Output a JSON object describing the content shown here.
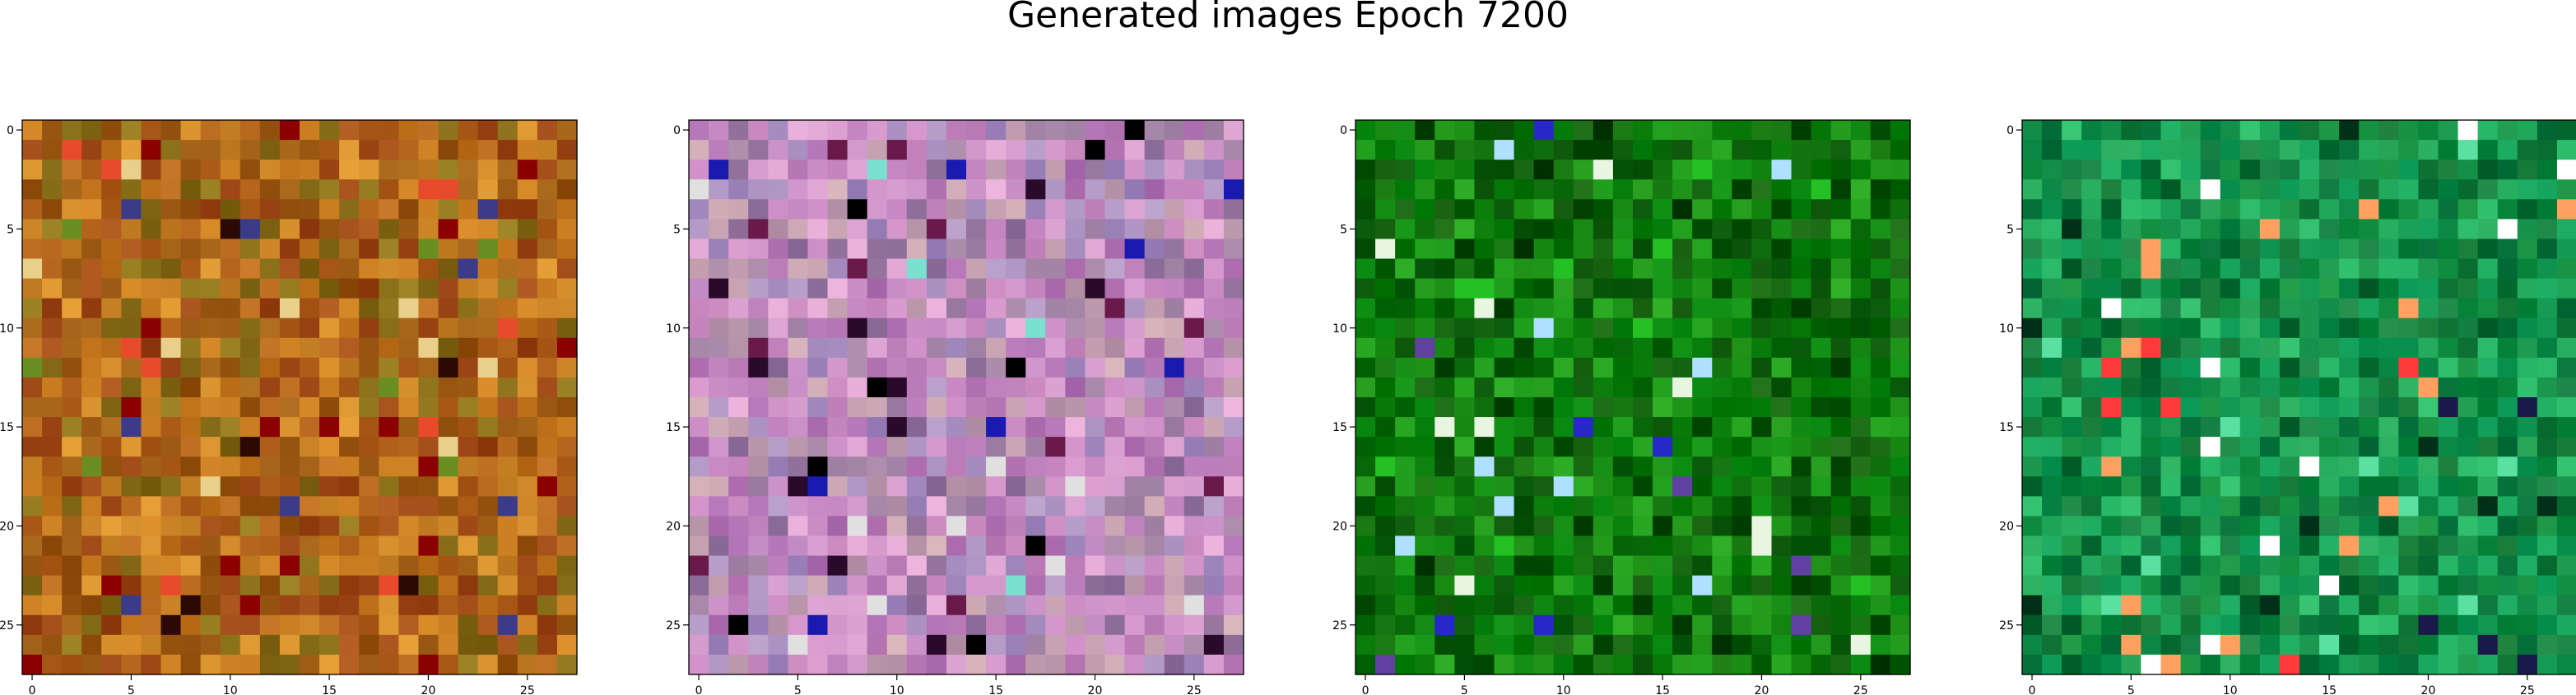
{
  "figure": {
    "title": "Generated images Epoch 7200"
  },
  "chart_data": [
    {
      "type": "heatmap",
      "name": "image-1",
      "title": "",
      "grid": false,
      "x_ticks": [
        0,
        5,
        10,
        15,
        20,
        25
      ],
      "y_ticks": [
        0,
        5,
        10,
        15,
        20,
        25
      ],
      "xlim": [
        -0.5,
        27.5
      ],
      "ylim": [
        27.5,
        -0.5
      ],
      "size": [
        28,
        28
      ],
      "palette_description": "warm orange/brown/olive noise with scattered red, dark and yellow pixels",
      "base_colors": [
        "#b5651d",
        "#c77a1f",
        "#9c5a14",
        "#8a6f1a",
        "#d08a2a",
        "#a04a18"
      ],
      "accent_colors": [
        "#8b0000",
        "#2b0a05",
        "#e84b2b",
        "#e8d08a",
        "#3b3b8a",
        "#6b8e23"
      ]
    },
    {
      "type": "heatmap",
      "name": "image-2",
      "title": "",
      "grid": false,
      "x_ticks": [
        0,
        5,
        10,
        15,
        20,
        25
      ],
      "y_ticks": [
        0,
        5,
        10,
        15,
        20,
        25
      ],
      "xlim": [
        -0.5,
        27.5
      ],
      "ylim": [
        27.5,
        -0.5
      ],
      "size": [
        28,
        28
      ],
      "palette_description": "pink/lilac/mauve noise with dark, blue and mint accents",
      "base_colors": [
        "#c98ac4",
        "#b979b5",
        "#d8a0d0",
        "#a88fc0",
        "#c4a0b0",
        "#9a7aa0"
      ],
      "accent_colors": [
        "#000000",
        "#2a0a2a",
        "#1a1ab0",
        "#7ae0d0",
        "#e0e0e0",
        "#6a1a4a"
      ]
    },
    {
      "type": "heatmap",
      "name": "image-3",
      "title": "",
      "grid": false,
      "x_ticks": [
        0,
        5,
        10,
        15,
        20,
        25
      ],
      "y_ticks": [
        0,
        5,
        10,
        15,
        20,
        25
      ],
      "xlim": [
        -0.5,
        27.5
      ],
      "ylim": [
        27.5,
        -0.5
      ],
      "size": [
        28,
        28
      ],
      "palette_description": "green noise with darker greens, a few bright green and blue pixels",
      "base_colors": [
        "#0a6a0a",
        "#0b7d0b",
        "#064f06",
        "#138a13",
        "#0e5e0e",
        "#1a9a1a"
      ],
      "accent_colors": [
        "#003000",
        "#24c024",
        "#2828c8",
        "#b0e0ff",
        "#e8f5e0",
        "#6040a0"
      ]
    },
    {
      "type": "heatmap",
      "name": "image-4",
      "title": "",
      "grid": false,
      "x_ticks": [
        0,
        5,
        10,
        15,
        20,
        25
      ],
      "y_ticks": [
        0,
        5,
        10,
        15,
        20,
        25
      ],
      "xlim": [
        -0.5,
        27.5
      ],
      "ylim": [
        27.5,
        -0.5
      ],
      "size": [
        28,
        28
      ],
      "palette_description": "teal-green noise with red, orange and white accent pixels",
      "base_colors": [
        "#0e8a3e",
        "#138f4a",
        "#0a6e32",
        "#1aa057",
        "#0f7a40",
        "#22b065"
      ],
      "accent_colors": [
        "#003018",
        "#ff3a3a",
        "#ffa060",
        "#ffffff",
        "#5ae0a0",
        "#1a1a4a"
      ]
    }
  ]
}
